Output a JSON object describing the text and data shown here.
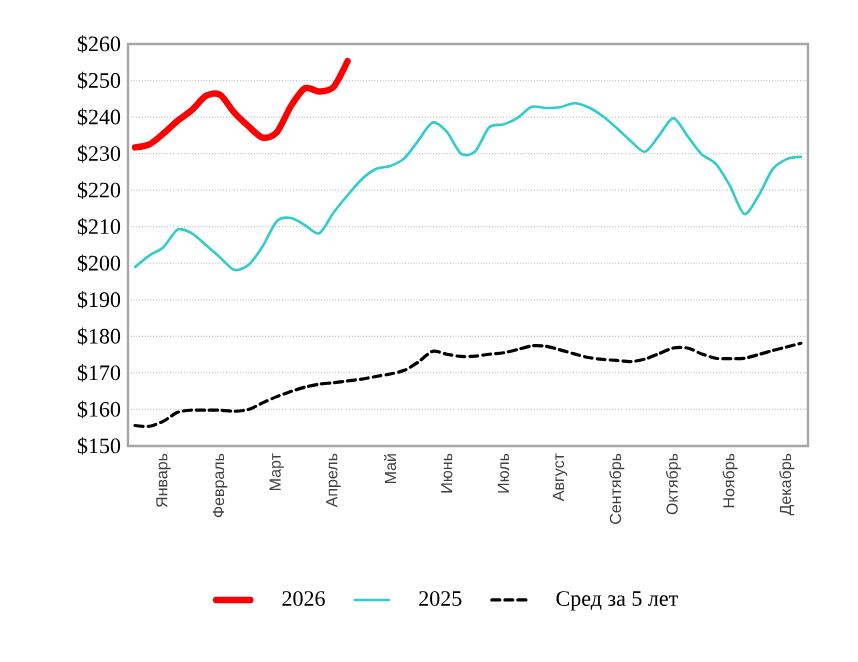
{
  "chart_data": {
    "type": "line",
    "categories": [
      null,
      null,
      "Январь",
      null,
      null,
      null,
      "Февраль",
      null,
      null,
      null,
      "Март",
      null,
      null,
      null,
      "Апрель",
      null,
      null,
      null,
      "Май",
      null,
      null,
      null,
      "Июнь",
      null,
      null,
      null,
      "Июль",
      null,
      null,
      null,
      "Август",
      null,
      null,
      null,
      "Сентябрь",
      null,
      null,
      null,
      "Октябрь",
      null,
      null,
      null,
      "Ноябрь",
      null,
      null,
      null,
      "Декабрь",
      null
    ],
    "ylim": [
      150,
      260
    ],
    "yticks": [
      {
        "value": 150,
        "label": "$150"
      },
      {
        "value": 160,
        "label": "$160"
      },
      {
        "value": 170,
        "label": "$170"
      },
      {
        "value": 180,
        "label": "$180"
      },
      {
        "value": 190,
        "label": "$190"
      },
      {
        "value": 200,
        "label": "$200"
      },
      {
        "value": 210,
        "label": "$210"
      },
      {
        "value": 220,
        "label": "$220"
      },
      {
        "value": 230,
        "label": "$230"
      },
      {
        "value": 240,
        "label": "$240"
      },
      {
        "value": 250,
        "label": "$250"
      },
      {
        "value": 260,
        "label": "$260"
      }
    ],
    "grid": "y",
    "legend": "bottom",
    "marker": "none",
    "series": [
      {
        "name": "2026",
        "color": "#ff0000",
        "line_style": "solid",
        "values": [
          231.7,
          232.5,
          235.5,
          239.0,
          241.9,
          245.8,
          246.1,
          241.2,
          237.5,
          234.4,
          235.8,
          243.0,
          247.9,
          247.0,
          248.2,
          255.3,
          null,
          null,
          null,
          null,
          null,
          null,
          null,
          null,
          null,
          null,
          null,
          null,
          null,
          null,
          null,
          null,
          null,
          null,
          null,
          null,
          null,
          null,
          null,
          null,
          null,
          null,
          null,
          null,
          null,
          null,
          null,
          null
        ]
      },
      {
        "name": "2025",
        "color": "#33cccc",
        "line_style": "solid",
        "values": [
          199.0,
          202.1,
          204.4,
          209.2,
          208.2,
          205.0,
          201.6,
          198.2,
          199.5,
          204.6,
          211.5,
          212.4,
          210.4,
          208.2,
          213.8,
          218.6,
          223.0,
          225.8,
          226.6,
          228.7,
          233.6,
          238.5,
          236.0,
          230.0,
          230.6,
          237.2,
          238.0,
          239.8,
          242.8,
          242.5,
          242.7,
          243.8,
          242.7,
          240.3,
          237.0,
          233.4,
          230.5,
          235.0,
          239.7,
          234.8,
          229.8,
          227.2,
          221.1,
          213.5,
          218.4,
          225.7,
          228.5,
          229.1
        ]
      },
      {
        "name": "Сред за 5 лет",
        "color": "#000000",
        "line_style": "dashed",
        "values": [
          155.6,
          155.4,
          156.8,
          159.2,
          159.8,
          159.8,
          159.8,
          159.5,
          160.0,
          161.8,
          163.5,
          164.9,
          166.1,
          166.9,
          167.3,
          167.8,
          168.3,
          169.0,
          169.7,
          170.7,
          173.0,
          175.9,
          175.1,
          174.5,
          174.6,
          175.1,
          175.5,
          176.4,
          177.4,
          177.3,
          176.3,
          175.2,
          174.2,
          173.7,
          173.4,
          173.1,
          173.8,
          175.3,
          176.8,
          176.8,
          175.2,
          174.0,
          173.9,
          174.0,
          175.0,
          176.1,
          177.1,
          178.1
        ]
      }
    ]
  }
}
